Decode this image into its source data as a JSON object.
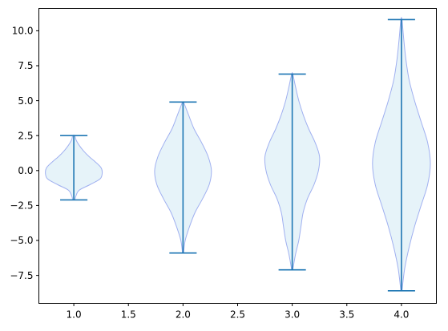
{
  "chart_data": {
    "type": "violin",
    "title": "",
    "xlabel": "",
    "ylabel": "",
    "xlim": [
      0.68,
      4.32
    ],
    "ylim": [
      -9.5,
      11.6
    ],
    "xticks": [
      1.0,
      1.5,
      2.0,
      2.5,
      3.0,
      3.5,
      4.0
    ],
    "xtick_labels": [
      "1.0",
      "1.5",
      "2.0",
      "2.5",
      "3.0",
      "3.5",
      "4.0"
    ],
    "yticks": [
      -7.5,
      -5.0,
      -2.5,
      0.0,
      2.5,
      5.0,
      7.5,
      10.0
    ],
    "ytick_labels": [
      "−7.5",
      "−5.0",
      "−2.5",
      "0.0",
      "2.5",
      "5.0",
      "7.5",
      "10.0"
    ],
    "grid": false,
    "colors": {
      "body_fill": "#e3f2f8",
      "body_edge": "#a0b0f0",
      "lines": "#1f77b4"
    },
    "violins": [
      {
        "position": 1.0,
        "min": -2.1,
        "max": 2.5,
        "profile": [
          [
            -2.1,
            0.01
          ],
          [
            -1.8,
            0.02
          ],
          [
            -1.4,
            0.05
          ],
          [
            -1.0,
            0.15
          ],
          [
            -0.6,
            0.24
          ],
          [
            -0.2,
            0.26
          ],
          [
            0.2,
            0.25
          ],
          [
            0.6,
            0.2
          ],
          [
            1.0,
            0.14
          ],
          [
            1.4,
            0.09
          ],
          [
            1.8,
            0.05
          ],
          [
            2.2,
            0.02
          ],
          [
            2.5,
            0.01
          ]
        ]
      },
      {
        "position": 2.0,
        "min": -5.9,
        "max": 4.9,
        "profile": [
          [
            -5.9,
            0.005
          ],
          [
            -5.0,
            0.02
          ],
          [
            -4.0,
            0.06
          ],
          [
            -3.0,
            0.11
          ],
          [
            -2.0,
            0.18
          ],
          [
            -1.0,
            0.24
          ],
          [
            0.0,
            0.26
          ],
          [
            1.0,
            0.23
          ],
          [
            2.0,
            0.17
          ],
          [
            3.0,
            0.1
          ],
          [
            4.0,
            0.05
          ],
          [
            4.6,
            0.02
          ],
          [
            4.9,
            0.005
          ]
        ]
      },
      {
        "position": 3.0,
        "min": -7.1,
        "max": 6.9,
        "profile": [
          [
            -7.1,
            0.005
          ],
          [
            -6.0,
            0.03
          ],
          [
            -5.0,
            0.06
          ],
          [
            -4.0,
            0.08
          ],
          [
            -3.0,
            0.1
          ],
          [
            -2.0,
            0.14
          ],
          [
            -1.0,
            0.2
          ],
          [
            0.0,
            0.24
          ],
          [
            1.0,
            0.25
          ],
          [
            2.0,
            0.21
          ],
          [
            3.0,
            0.15
          ],
          [
            4.0,
            0.1
          ],
          [
            5.0,
            0.06
          ],
          [
            6.0,
            0.03
          ],
          [
            6.9,
            0.005
          ]
        ]
      },
      {
        "position": 4.0,
        "min": -8.6,
        "max": 10.8,
        "profile": [
          [
            -8.6,
            0.005
          ],
          [
            -7.0,
            0.03
          ],
          [
            -5.5,
            0.07
          ],
          [
            -4.0,
            0.12
          ],
          [
            -2.5,
            0.18
          ],
          [
            -1.0,
            0.24
          ],
          [
            0.5,
            0.265
          ],
          [
            2.0,
            0.24
          ],
          [
            3.5,
            0.18
          ],
          [
            5.0,
            0.12
          ],
          [
            6.5,
            0.07
          ],
          [
            8.0,
            0.04
          ],
          [
            9.5,
            0.02
          ],
          [
            10.8,
            0.005
          ]
        ]
      }
    ]
  }
}
